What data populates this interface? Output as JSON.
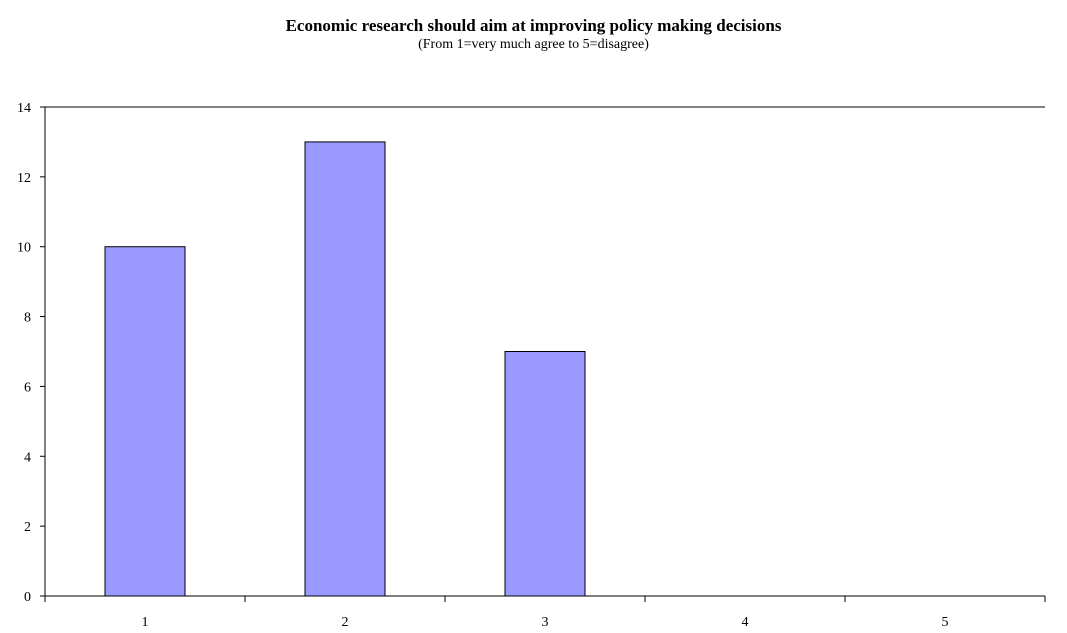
{
  "chart_data": {
    "type": "bar",
    "title": "Economic research should aim at improving policy making decisions",
    "subtitle": "(From 1=very much agree to 5=disagree)",
    "categories": [
      "1",
      "2",
      "3",
      "4",
      "5"
    ],
    "values": [
      10,
      13,
      7,
      0,
      0
    ],
    "ylim": [
      0,
      14
    ],
    "yticks": [
      0,
      2,
      4,
      6,
      8,
      10,
      12,
      14
    ],
    "xlabel": "",
    "ylabel": "",
    "grid": false,
    "bar_color": "#9999ff",
    "bar_edge_color": "#000000"
  }
}
